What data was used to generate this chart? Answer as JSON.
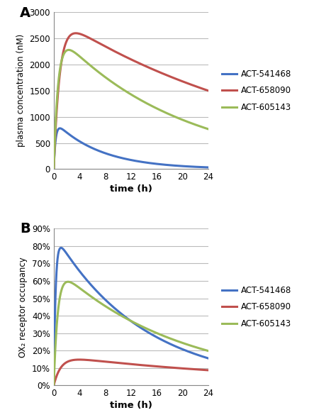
{
  "panel_A": {
    "title": "A",
    "ylabel": "plasma concentration (nM)",
    "xlabel": "time (h)",
    "ylim": [
      0,
      3000
    ],
    "yticks": [
      0,
      500,
      1000,
      1500,
      2000,
      2500,
      3000
    ],
    "xticks": [
      0,
      4,
      8,
      12,
      16,
      20,
      24
    ],
    "lines": [
      {
        "name": "ACT-541468",
        "color": "#4472C4",
        "k_abs": 3.5,
        "k_elim": 0.14,
        "cmax": 780
      },
      {
        "name": "ACT-658090",
        "color": "#C0504D",
        "k_abs": 1.1,
        "k_elim": 0.028,
        "cmax": 2600
      },
      {
        "name": "ACT-605143",
        "color": "#9BBB59",
        "k_abs": 1.5,
        "k_elim": 0.052,
        "cmax": 2280
      }
    ]
  },
  "panel_B": {
    "title": "B",
    "ylabel": "OX₂ receptor occupancy",
    "xlabel": "time (h)",
    "ylim": [
      0,
      0.9
    ],
    "yticks": [
      0,
      0.1,
      0.2,
      0.3,
      0.4,
      0.5,
      0.6,
      0.7,
      0.8,
      0.9
    ],
    "ytick_labels": [
      "0%",
      "10%",
      "20%",
      "30%",
      "40%",
      "50%",
      "60%",
      "70%",
      "80%",
      "90%"
    ],
    "xticks": [
      0,
      4,
      8,
      12,
      16,
      20,
      24
    ],
    "lines": [
      {
        "name": "ACT-541468",
        "color": "#4472C4",
        "k_abs": 3.5,
        "k_elim": 0.072,
        "cmax": 0.79
      },
      {
        "name": "ACT-658090",
        "color": "#C0504D",
        "k_abs": 0.9,
        "k_elim": 0.028,
        "cmax": 0.148
      },
      {
        "name": "ACT-605143",
        "color": "#9BBB59",
        "k_abs": 1.6,
        "k_elim": 0.052,
        "cmax": 0.595
      }
    ]
  },
  "grid_color": "#BBBBBB",
  "line_width": 2.2,
  "bg_color": "#FFFFFF"
}
